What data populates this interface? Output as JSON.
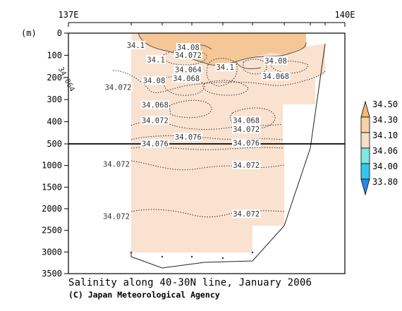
{
  "chart_data": {
    "type": "contour",
    "title": "Salinity along 40-30N line, January 2006",
    "credit": "(C) Japan Meteorological Agency",
    "ylabel": "(m)",
    "x_ticks": [
      "137E",
      "140E"
    ],
    "y_ticks_upper": [
      "0",
      "100",
      "200",
      "300",
      "400",
      "500"
    ],
    "y_ticks_lower": [
      "1000",
      "1500",
      "2000",
      "2500",
      "3000",
      "3500"
    ],
    "y_break_depth": 500,
    "ylim": [
      0,
      3500
    ],
    "contour_labels": [
      {
        "text": "34.1",
        "depth": 60,
        "lon": 137.73
      },
      {
        "text": "34.1",
        "depth": 125,
        "lon": 137.95
      },
      {
        "text": "34.08",
        "depth": 70,
        "lon": 138.3
      },
      {
        "text": "34.072",
        "depth": 105,
        "lon": 138.3
      },
      {
        "text": "34.064",
        "depth": 170,
        "lon": 138.3
      },
      {
        "text": "34.068",
        "depth": 210,
        "lon": 138.28
      },
      {
        "text": "34.08",
        "depth": 220,
        "lon": 137.93
      },
      {
        "text": "34.1",
        "depth": 160,
        "lon": 138.7
      },
      {
        "text": "34.08",
        "depth": 130,
        "lon": 139.25
      },
      {
        "text": "34.068",
        "depth": 200,
        "lon": 139.25
      },
      {
        "text": "34.072",
        "depth": 250,
        "lon": 137.54
      },
      {
        "text": "34.068",
        "depth": 330,
        "lon": 137.94
      },
      {
        "text": "34.072",
        "depth": 400,
        "lon": 137.94
      },
      {
        "text": "34.068",
        "depth": 400,
        "lon": 138.93
      },
      {
        "text": "34.072",
        "depth": 440,
        "lon": 138.93
      },
      {
        "text": "34.076",
        "depth": 475,
        "lon": 138.3
      },
      {
        "text": "34.076",
        "depth": 525,
        "lon": 137.94
      },
      {
        "text": "34.076",
        "depth": 510,
        "lon": 138.93
      },
      {
        "text": "34.072",
        "depth": 1000,
        "lon": 137.52
      },
      {
        "text": "34.072",
        "depth": 1020,
        "lon": 138.93
      },
      {
        "text": "34.072",
        "depth": 2200,
        "lon": 137.52
      },
      {
        "text": "34.072",
        "depth": 2150,
        "lon": 138.93
      },
      {
        "text": "34.064",
        "depth": 210,
        "lon": 136.97
      }
    ],
    "colorbar": {
      "levels": [
        "34.50",
        "34.30",
        "34.10",
        "34.06",
        "34.00",
        "33.80"
      ],
      "colors": [
        "#f4b870",
        "#f8d2a4",
        "#f9ddc8",
        "#7fe8e0",
        "#34c7ee",
        "#2a8ae6"
      ]
    }
  }
}
